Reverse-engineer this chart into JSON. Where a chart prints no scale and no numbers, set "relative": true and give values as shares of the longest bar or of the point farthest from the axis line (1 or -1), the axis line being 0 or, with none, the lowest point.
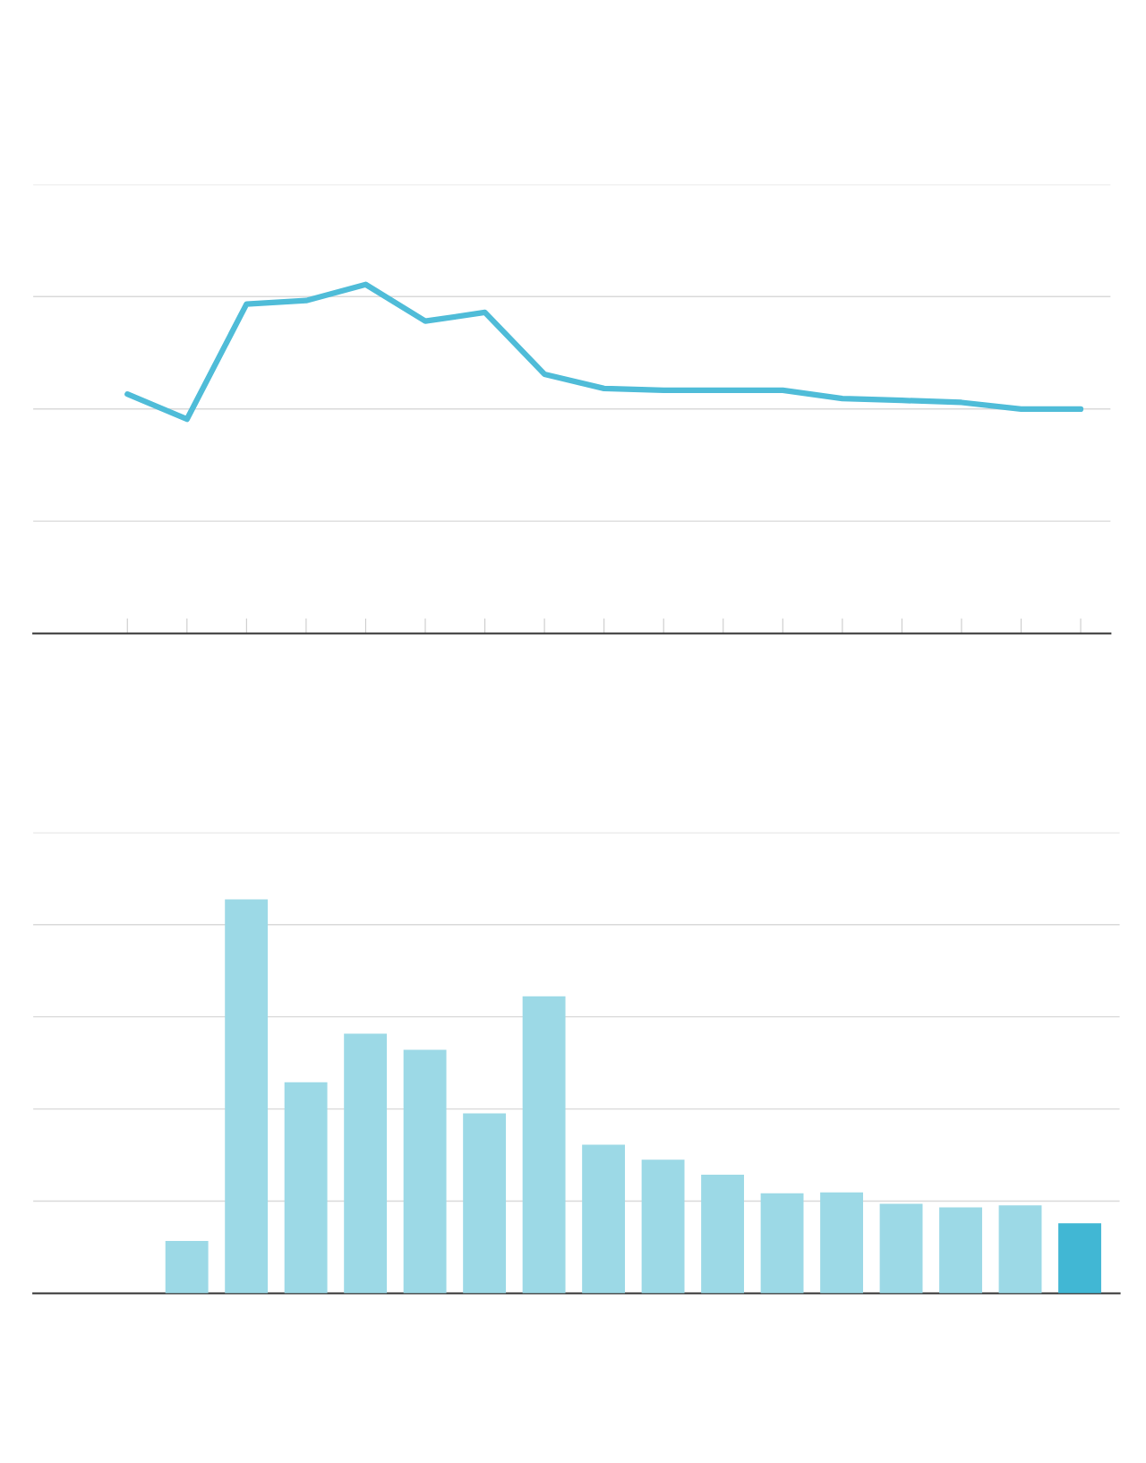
{
  "chart_data": [
    {
      "type": "line",
      "relative": true,
      "grid": "y",
      "categories": [
        null,
        null,
        null,
        null,
        null,
        null,
        null,
        null,
        null,
        null,
        null,
        null,
        null,
        null,
        null,
        null,
        null
      ],
      "series": [
        {
          "color": "#4fbcd8",
          "values": [
            0.686,
            0.614,
            0.944,
            0.954,
            1,
            0.895,
            0.92,
            0.743,
            0.702,
            0.697,
            0.697,
            0.697,
            0.673,
            0.668,
            0.662,
            0.643,
            0.643
          ]
        }
      ]
    },
    {
      "type": "bar",
      "relative": true,
      "grid": "y",
      "categories": [
        null,
        null,
        null,
        null,
        null,
        null,
        null,
        null,
        null,
        null,
        null,
        null,
        null,
        null,
        null,
        null,
        null
      ],
      "values": [
        null,
        0.133,
        1,
        0.536,
        0.659,
        0.618,
        0.457,
        0.754,
        0.377,
        0.339,
        0.301,
        0.254,
        0.256,
        0.227,
        0.218,
        0.223,
        0.178
      ],
      "colors": [
        "#9cd9e6",
        "#9cd9e6",
        "#9cd9e6",
        "#9cd9e6",
        "#9cd9e6",
        "#9cd9e6",
        "#9cd9e6",
        "#9cd9e6",
        "#9cd9e6",
        "#9cd9e6",
        "#9cd9e6",
        "#9cd9e6",
        "#9cd9e6",
        "#9cd9e6",
        "#9cd9e6",
        "#9cd9e6",
        "#41b7d4"
      ]
    }
  ]
}
